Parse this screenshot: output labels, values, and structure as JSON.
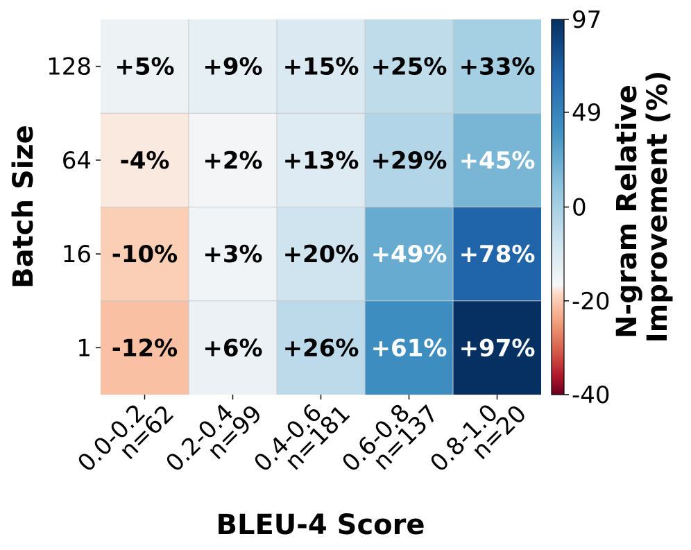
{
  "chart_data": {
    "type": "heatmap",
    "title": "",
    "xlabel": "BLEU-4 Score",
    "ylabel": "Batch Size",
    "x_categories": [
      {
        "range": "0.0-0.2",
        "count": "n=62"
      },
      {
        "range": "0.2-0.4",
        "count": "n=99"
      },
      {
        "range": "0.4-0.6",
        "count": "n=181"
      },
      {
        "range": "0.6-0.8",
        "count": "n=137"
      },
      {
        "range": "0.8-1.0",
        "count": "n=20"
      }
    ],
    "y_categories": [
      "128",
      "64",
      "16",
      "1"
    ],
    "values": [
      [
        5,
        9,
        15,
        25,
        33
      ],
      [
        -4,
        2,
        13,
        29,
        45
      ],
      [
        -10,
        3,
        20,
        49,
        78
      ],
      [
        -12,
        6,
        26,
        61,
        97
      ]
    ],
    "value_labels": [
      [
        "+5%",
        "+9%",
        "+15%",
        "+25%",
        "+33%"
      ],
      [
        "-4%",
        "+2%",
        "+13%",
        "+29%",
        "+45%"
      ],
      [
        "-10%",
        "+3%",
        "+20%",
        "+49%",
        "+78%"
      ],
      [
        "-12%",
        "+6%",
        "+26%",
        "+61%",
        "+97%"
      ]
    ],
    "colorbar": {
      "label_lines": [
        "N-gram Relative",
        "Improvement (%)"
      ],
      "ticks": [
        97,
        49,
        0,
        -20,
        -40
      ],
      "vmin": -40,
      "vcenter": 0,
      "vmax": 97,
      "colormap": "RdBu"
    },
    "grid": true
  }
}
